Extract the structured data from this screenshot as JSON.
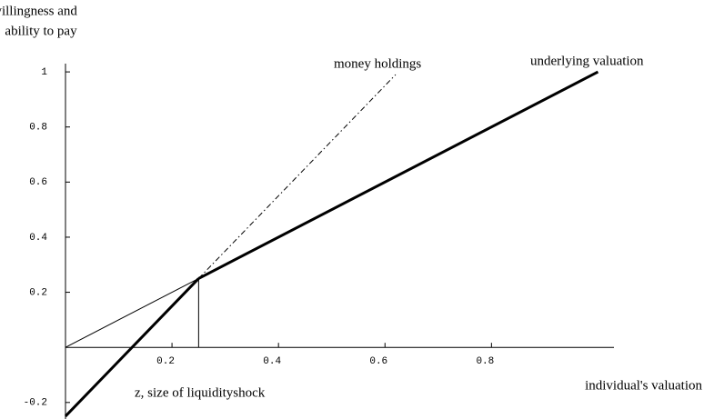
{
  "chart_data": {
    "type": "line",
    "ylabel": [
      "willingness and",
      "ability to pay"
    ],
    "xlabel": "individual's valuation",
    "annotation": "z, size of liquidityshock",
    "xlim": [
      0,
      1.03
    ],
    "ylim": [
      -0.26,
      1.03
    ],
    "xticks": [
      0.2,
      0.4,
      0.6,
      0.8
    ],
    "yticks": [
      -0.2,
      0.2,
      0.4,
      0.6,
      0.8,
      1
    ],
    "color": "#000000",
    "series": [
      {
        "name": "underlying valuation",
        "x": [
          0.25,
          1
        ],
        "values": [
          0.25,
          1
        ],
        "width": 3
      },
      {
        "x": [
          0,
          0.25
        ],
        "values": [
          -0.25,
          0.25
        ],
        "width": 3
      },
      {
        "x": [
          0,
          0.25
        ],
        "values": [
          0,
          0.25
        ],
        "width": 1
      },
      {
        "name": "money holdings",
        "x": [
          0.25,
          0.62
        ],
        "values": [
          0.25,
          0.99
        ],
        "width": 1,
        "dash": true
      },
      {
        "x": [
          0.25,
          0.25
        ],
        "values": [
          0,
          0.25
        ],
        "width": 1
      }
    ]
  }
}
